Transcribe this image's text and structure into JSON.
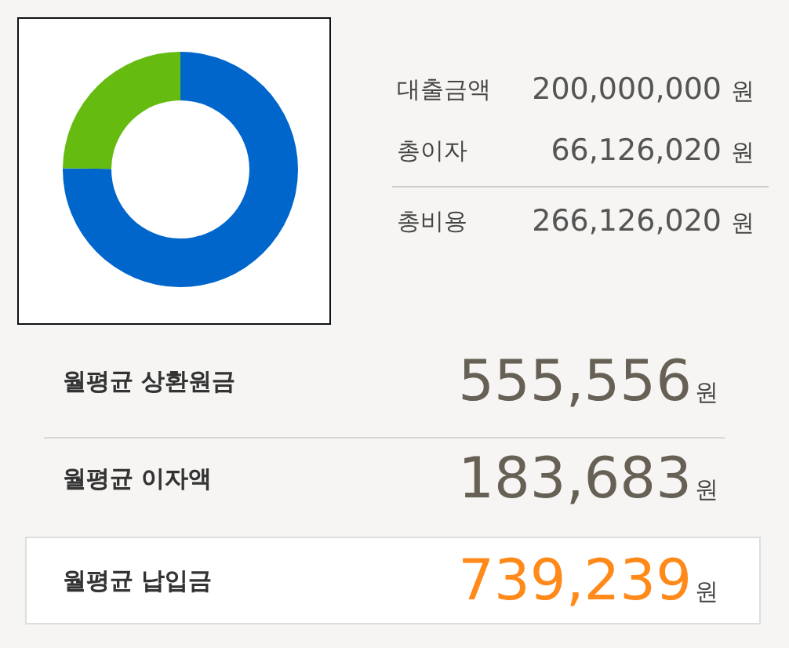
{
  "chart_data": [
    {
      "type": "donut",
      "categories": [
        null,
        null
      ],
      "values": [
        75.15,
        24.85
      ],
      "colors": [
        "#0066cc",
        "#66bb11"
      ]
    },
    {
      "type": "other",
      "categories": [
        "대출금액",
        "총이자",
        "총비용",
        "월평균 상환원금",
        "월평균 이자액",
        "월평균 납입금"
      ],
      "value_labels": [
        "200,000,000",
        "66,126,020",
        "266,126,020",
        "555,556",
        "183,683",
        "739,239"
      ],
      "annotations": [
        "원",
        "원",
        "원",
        "원",
        "원",
        "원"
      ]
    }
  ]
}
